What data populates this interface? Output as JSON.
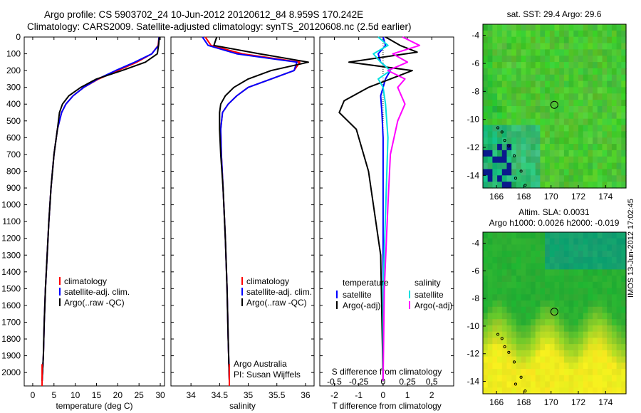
{
  "header": {
    "title_line1": "Argo profile: CS 5903702_24 10-Jun-2012 20120612_84 8.959S 170.242E",
    "title_line2": "Climatology: CARS2009. Satellite-adjusted climatology: synTS_20120608.nc (2.5d earlier)"
  },
  "footer": {
    "timestamp": "IMOS 13-Jun-2012 17:02:45"
  },
  "colors": {
    "climatology": "#ff0000",
    "satellite": "#0000ff",
    "argo": "#000000",
    "sal_satellite": "#00e0e0",
    "sal_argo": "#ff00ff"
  },
  "chart_data": [
    {
      "type": "line",
      "panel": "temperature",
      "xlabel": "temperature (deg C)",
      "ylabel": "",
      "xlim": [
        -2,
        31
      ],
      "ylim": [
        2080,
        0
      ],
      "xticks": [
        0,
        5,
        10,
        15,
        20,
        25,
        30
      ],
      "yticks": [
        0,
        100,
        200,
        300,
        400,
        500,
        600,
        700,
        800,
        900,
        1000,
        1100,
        1200,
        1300,
        1400,
        1500,
        1600,
        1700,
        1800,
        1900,
        2000
      ],
      "legend": [
        "climatology",
        "satellite-adj. clim.",
        "Argo(..raw -QC)"
      ],
      "legend_position": "lower-center",
      "series": [
        {
          "name": "climatology",
          "x": [
            29.7,
            29.5,
            28,
            24.5,
            20,
            15.5,
            12,
            9.5,
            7.8,
            6.8,
            5.8,
            5,
            4.3,
            3.8,
            3.4,
            3,
            2.7,
            2.5,
            2.3,
            2.2
          ],
          "y": [
            0,
            50,
            100,
            150,
            200,
            250,
            300,
            350,
            400,
            450,
            550,
            700,
            900,
            1100,
            1300,
            1500,
            1700,
            1900,
            2000,
            2050
          ]
        },
        {
          "name": "satellite-adj. clim.",
          "x": [
            29.7,
            29.6,
            28,
            24,
            19.5,
            15.3,
            12,
            9.5,
            7.8,
            6.8,
            5.8,
            5,
            4.3,
            3.8,
            3.4,
            3,
            2.7,
            2.5,
            2.3,
            2.2
          ],
          "y": [
            0,
            50,
            100,
            150,
            200,
            250,
            300,
            350,
            400,
            450,
            550,
            700,
            900,
            1100,
            1300,
            1500,
            1700,
            1900,
            2000,
            2050
          ]
        },
        {
          "name": "Argo(..raw -QC)",
          "x": [
            29.8,
            29.6,
            29.3,
            26.5,
            21,
            15,
            11.3,
            8.5,
            7,
            6.3,
            5.8,
            5,
            4.3,
            3.8,
            3.4,
            3,
            2.7,
            2.5,
            2.3,
            2.2
          ],
          "y": [
            0,
            50,
            100,
            150,
            200,
            250,
            300,
            350,
            400,
            450,
            550,
            700,
            900,
            1100,
            1300,
            1500,
            1700,
            1900,
            2000,
            2050
          ]
        }
      ]
    },
    {
      "type": "line",
      "panel": "salinity",
      "xlabel": "salinity",
      "xlim": [
        33.65,
        36.15
      ],
      "ylim": [
        2080,
        0
      ],
      "xticks": [
        34,
        34.5,
        35,
        35.5,
        36
      ],
      "legend": [
        "climatology",
        "satellite-adj. clim.",
        "Argo(..raw -QC)"
      ],
      "annotation": [
        "Argo Australia",
        "PI: Susan Wijffels"
      ],
      "series": [
        {
          "name": "climatology",
          "x": [
            34.25,
            34.35,
            34.9,
            35.9,
            35.8,
            35.4,
            35,
            34.8,
            34.65,
            34.55,
            34.52,
            34.53,
            34.56,
            34.6,
            34.63,
            34.65,
            34.67
          ],
          "y": [
            0,
            50,
            100,
            150,
            200,
            250,
            300,
            350,
            400,
            450,
            550,
            700,
            900,
            1200,
            1500,
            1800,
            2050
          ]
        },
        {
          "name": "satellite-adj. clim.",
          "x": [
            34.2,
            34.3,
            34.8,
            35.85,
            35.8,
            35.4,
            35,
            34.8,
            34.65,
            34.55,
            34.52,
            34.53,
            34.56,
            34.6,
            34.63,
            34.65,
            34.67
          ],
          "y": [
            0,
            50,
            100,
            150,
            200,
            250,
            300,
            350,
            400,
            450,
            550,
            700,
            900,
            1200,
            1500,
            1800,
            2050
          ]
        },
        {
          "name": "Argo(..raw -QC)",
          "x": [
            34.45,
            34.4,
            35.2,
            36.05,
            35.4,
            35,
            34.75,
            34.6,
            34.52,
            34.5,
            34.5,
            34.52,
            34.56,
            34.6,
            34.63,
            34.65,
            34.67
          ],
          "y": [
            0,
            50,
            100,
            150,
            200,
            250,
            300,
            350,
            400,
            450,
            550,
            700,
            900,
            1200,
            1500,
            1800,
            2050
          ]
        }
      ]
    },
    {
      "type": "line",
      "panel": "difference",
      "xlabel": "T difference from climatology",
      "xlabel_top": "S difference from climatology",
      "xlim": [
        -2.6,
        2.9
      ],
      "ylim": [
        2080,
        0
      ],
      "xticks": [
        -2,
        -1,
        0,
        1,
        2
      ],
      "xticks_s": [
        "-0.5",
        "-0.25",
        "0",
        "0.25",
        "0.5"
      ],
      "legend_left": {
        "title": "temperature",
        "entries": [
          "satellite",
          "Argo(-adj)"
        ]
      },
      "legend_right": {
        "title": "salinity",
        "entries": [
          "satellite",
          "Argo(-adj)"
        ]
      },
      "series": [
        {
          "name": "temperature satellite",
          "x": [
            0,
            0.1,
            -0.2,
            -0.1,
            0.3,
            0.1,
            0,
            -0.1,
            -0.05,
            0,
            0,
            0,
            0
          ],
          "y": [
            0,
            50,
            100,
            150,
            200,
            250,
            300,
            350,
            450,
            600,
            900,
            1500,
            2050
          ]
        },
        {
          "name": "temperature Argo(-adj)",
          "x": [
            0.1,
            0.7,
            1.4,
            -1.4,
            1.2,
            0.3,
            -0.6,
            -1.6,
            -1.8,
            -1.1,
            -0.6,
            -0.1,
            0
          ],
          "y": [
            0,
            50,
            90,
            150,
            200,
            250,
            300,
            380,
            450,
            550,
            800,
            1300,
            2050
          ]
        },
        {
          "name": "salinity satellite",
          "x": [
            -0.2,
            0.2,
            -0.4,
            -0.1,
            0.3,
            -0.2,
            0,
            0.1,
            0.2,
            0,
            0
          ],
          "y": [
            0,
            50,
            100,
            150,
            200,
            250,
            300,
            400,
            600,
            1500,
            2050
          ]
        },
        {
          "name": "salinity Argo(-adj)",
          "x": [
            0.8,
            1.5,
            0.4,
            1.0,
            0.2,
            0.9,
            0.6,
            0.9,
            0.6,
            0.3,
            0.2,
            0.05,
            0
          ],
          "y": [
            0,
            50,
            100,
            150,
            200,
            250,
            300,
            400,
            500,
            700,
            1000,
            1500,
            2050
          ]
        }
      ]
    },
    {
      "type": "heatmap",
      "panel": "sst_map",
      "title": "sat. SST: 29.4  Argo: 29.6",
      "xlim": [
        165,
        175.5
      ],
      "ylim": [
        -14.9,
        -3.2
      ],
      "xticks": [
        166,
        168,
        170,
        172,
        174
      ],
      "yticks": [
        -4,
        -6,
        -8,
        -10,
        -12,
        -14
      ],
      "marker": {
        "lon": 170.242,
        "lat": -8.959
      }
    },
    {
      "type": "heatmap",
      "panel": "sla_map",
      "title": [
        "Altim. SLA: 0.0031",
        "Argo h1000: 0.0026 h2000: -0.019"
      ],
      "xlim": [
        165,
        175.5
      ],
      "ylim": [
        -14.9,
        -3.2
      ],
      "xticks": [
        166,
        168,
        170,
        172,
        174
      ],
      "yticks": [
        -4,
        -6,
        -8,
        -10,
        -12,
        -14
      ],
      "marker": {
        "lon": 170.242,
        "lat": -8.959
      }
    }
  ]
}
